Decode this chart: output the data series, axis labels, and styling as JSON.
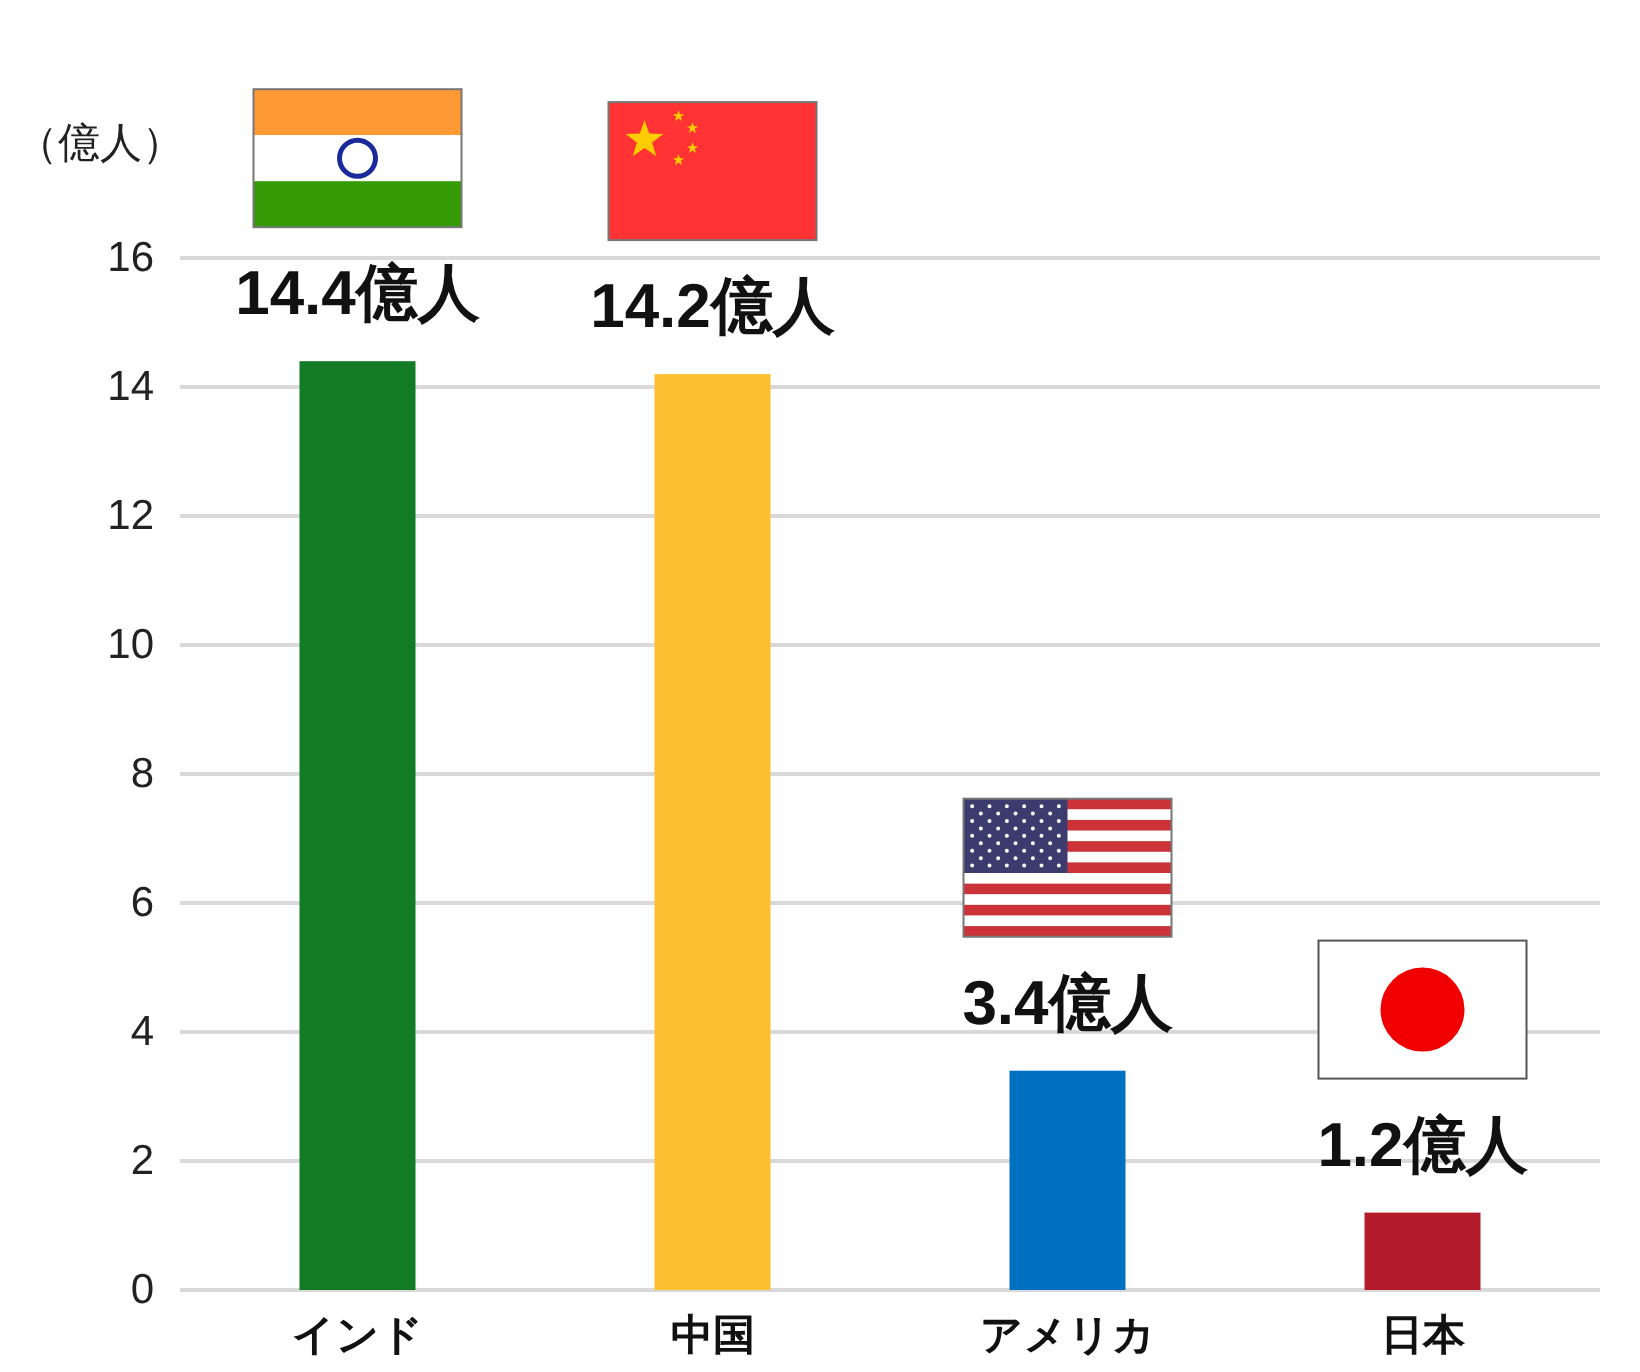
{
  "chart_data": {
    "type": "bar",
    "ylabel": "（億人）",
    "categories": [
      "インド",
      "中国",
      "アメリカ",
      "日本"
    ],
    "values": [
      14.4,
      14.2,
      3.4,
      1.2
    ],
    "colors": [
      "#137b23",
      "#fcbf2f",
      "#0070c0",
      "#b41c2c"
    ],
    "value_labels": [
      "14.4億人",
      "14.2億人",
      "3.4億人",
      "1.2億人"
    ],
    "ylim": [
      0,
      16
    ],
    "yticks": [
      0,
      2,
      4,
      6,
      8,
      10,
      12,
      14,
      16
    ],
    "grid": "y"
  }
}
